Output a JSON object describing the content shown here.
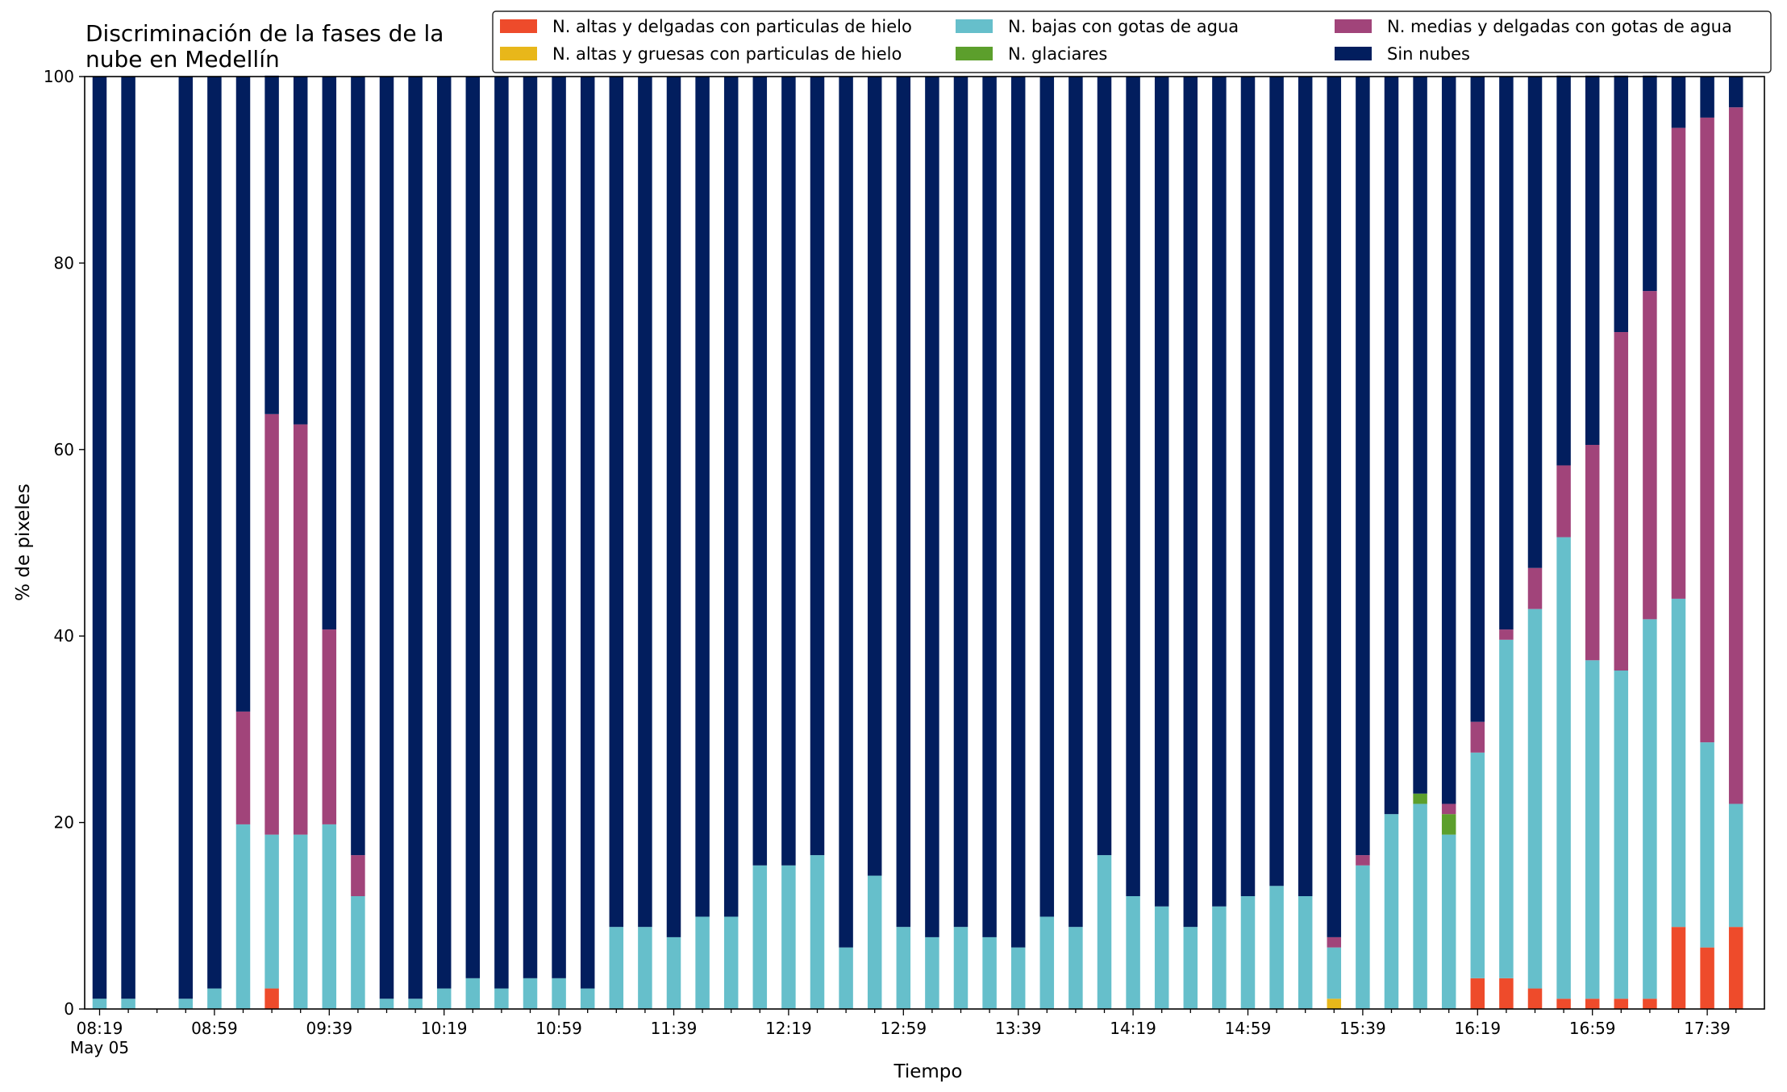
{
  "chart_data": {
    "type": "bar",
    "stacked": true,
    "title": "Discriminación de la fases de la\nnube en Medellín",
    "xlabel": "Tiempo",
    "ylabel": "% de pixeles",
    "ylim": [
      0,
      100
    ],
    "yticks": [
      0,
      20,
      40,
      60,
      80,
      100
    ],
    "legend_position": "top-right",
    "grid": false,
    "x_start": "08:19",
    "x_step_minutes": 10,
    "tick_labels": [
      "08:19\nMay 05",
      "08:59",
      "09:39",
      "10:19",
      "10:59",
      "11:39",
      "12:19",
      "12:59",
      "13:39",
      "14:19",
      "14:59",
      "15:39",
      "16:19",
      "16:59",
      "17:39"
    ],
    "categories": [
      "08:19",
      "08:29",
      "08:39",
      "08:49",
      "08:59",
      "09:09",
      "09:19",
      "09:29",
      "09:39",
      "09:49",
      "09:59",
      "10:09",
      "10:19",
      "10:29",
      "10:39",
      "10:49",
      "10:59",
      "11:09",
      "11:19",
      "11:29",
      "11:39",
      "11:49",
      "11:59",
      "12:09",
      "12:19",
      "12:29",
      "12:39",
      "12:49",
      "12:59",
      "13:09",
      "13:19",
      "13:29",
      "13:39",
      "13:49",
      "13:59",
      "14:09",
      "14:19",
      "14:29",
      "14:39",
      "14:49",
      "14:59",
      "15:09",
      "15:19",
      "15:29",
      "15:39",
      "15:49",
      "15:59",
      "16:09",
      "16:19",
      "16:29",
      "16:39",
      "16:49",
      "16:59",
      "17:09",
      "17:19",
      "17:29",
      "17:39",
      "17:49"
    ],
    "series": [
      {
        "name": "N. altas y delgadas con particulas de hielo",
        "color": "#ee4b2b",
        "values": [
          0,
          0,
          null,
          0,
          0,
          0,
          2.2,
          0,
          0,
          0,
          0,
          0,
          0,
          0,
          0,
          0,
          0,
          0,
          0,
          0,
          0,
          0,
          0,
          0,
          0,
          0,
          0,
          0,
          0,
          0,
          0,
          0,
          0,
          0,
          0,
          0,
          0,
          0,
          0,
          0,
          0,
          0,
          0,
          0,
          0,
          0,
          0,
          0,
          3.3,
          3.3,
          2.2,
          1.1,
          1.1,
          1.1,
          1.1,
          8.8,
          6.6,
          8.8
        ]
      },
      {
        "name": "N. altas y gruesas con particulas de hielo",
        "color": "#e8b71a",
        "values": [
          0,
          0,
          null,
          0,
          0,
          0,
          0,
          0,
          0,
          0,
          0,
          0,
          0,
          0,
          0,
          0,
          0,
          0,
          0,
          0,
          0,
          0,
          0,
          0,
          0,
          0,
          0,
          0,
          0,
          0,
          0,
          0,
          0,
          0,
          0,
          0,
          0,
          0,
          0,
          0,
          0,
          0,
          0,
          1.1,
          0,
          0,
          0,
          0,
          0,
          0,
          0,
          0,
          0,
          0,
          0,
          0,
          0,
          0
        ]
      },
      {
        "name": "N. bajas con gotas de agua",
        "color": "#66bfcb",
        "values": [
          1.1,
          1.1,
          null,
          1.1,
          2.2,
          19.8,
          16.5,
          18.7,
          19.8,
          12.1,
          1.1,
          1.1,
          2.2,
          3.3,
          2.2,
          3.3,
          3.3,
          2.2,
          8.8,
          8.8,
          7.7,
          9.9,
          9.9,
          15.4,
          15.4,
          16.5,
          6.6,
          14.3,
          8.8,
          7.7,
          8.8,
          7.7,
          6.6,
          9.9,
          8.8,
          16.5,
          12.1,
          11.0,
          8.8,
          11.0,
          12.1,
          13.2,
          12.1,
          5.5,
          15.4,
          20.9,
          22.0,
          18.7,
          24.2,
          36.3,
          40.7,
          49.5,
          36.3,
          35.2,
          40.7,
          35.2,
          22.0,
          13.2
        ]
      },
      {
        "name": "N. glaciares",
        "color": "#5c9f2c",
        "values": [
          0,
          0,
          null,
          0,
          0,
          0,
          0,
          0,
          0,
          0,
          0,
          0,
          0,
          0,
          0,
          0,
          0,
          0,
          0,
          0,
          0,
          0,
          0,
          0,
          0,
          0,
          0,
          0,
          0,
          0,
          0,
          0,
          0,
          0,
          0,
          0,
          0,
          0,
          0,
          0,
          0,
          0,
          0,
          0,
          0,
          0,
          1.1,
          2.2,
          0,
          0,
          0,
          0,
          0,
          0,
          0,
          0,
          0,
          0
        ]
      },
      {
        "name": "N. medias y delgadas con gotas de agua",
        "color": "#a1447a",
        "values": [
          0,
          0,
          null,
          0,
          0,
          12.1,
          45.1,
          44.0,
          20.9,
          4.4,
          0,
          0,
          0,
          0,
          0,
          0,
          0,
          0,
          0,
          0,
          0,
          0,
          0,
          0,
          0,
          0,
          0,
          0,
          0,
          0,
          0,
          0,
          0,
          0,
          0,
          0,
          0,
          0,
          0,
          0,
          0,
          0,
          0,
          1.1,
          1.1,
          0,
          0,
          1.1,
          3.3,
          1.1,
          4.4,
          7.7,
          23.1,
          36.3,
          35.2,
          50.5,
          67.0,
          74.7
        ]
      },
      {
        "name": "Sin nubes",
        "color": "#021e5e",
        "values": [
          98.9,
          98.9,
          null,
          98.9,
          97.8,
          68.1,
          36.3,
          37.3,
          59.3,
          83.5,
          98.9,
          98.9,
          97.8,
          96.7,
          97.8,
          96.7,
          96.7,
          97.8,
          91.2,
          91.2,
          92.3,
          90.1,
          90.1,
          84.6,
          84.6,
          83.5,
          93.4,
          85.7,
          91.2,
          92.3,
          91.2,
          92.3,
          93.4,
          90.1,
          91.2,
          83.5,
          87.9,
          89.0,
          91.2,
          89.0,
          87.9,
          86.8,
          87.9,
          92.3,
          83.5,
          79.1,
          76.9,
          78.0,
          69.2,
          59.3,
          52.7,
          41.8,
          39.6,
          27.5,
          23.1,
          5.5,
          4.4,
          3.3
        ]
      }
    ]
  }
}
